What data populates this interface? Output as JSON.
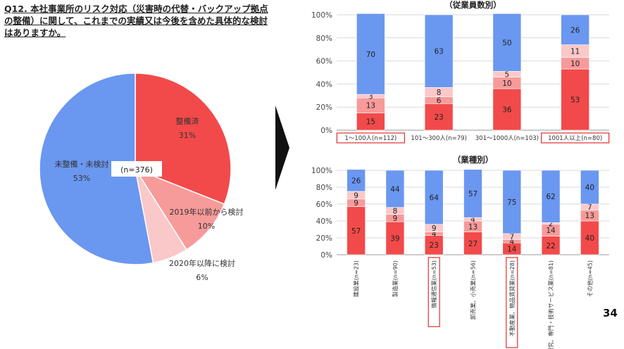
{
  "question": "Q12. 本社事業所のリスク対応（災害時の代替・バックアップ拠点の整備）に関して、これまでの実績又は今後を含めた具体的な検討はありますか。",
  "page_number": "34",
  "chart_data": [
    {
      "type": "pie",
      "n_label": "(n=376)",
      "slices": [
        {
          "label": "整備済",
          "value": 31,
          "value_label": "31%",
          "color": "#f24a4a"
        },
        {
          "label": "2019年以前から検討",
          "value": 10,
          "value_label": "10%",
          "color": "#f79a9a"
        },
        {
          "label": "2020年以降に検討",
          "value": 6,
          "value_label": "6%",
          "color": "#fac8c8"
        },
        {
          "label": "未整備・未検討",
          "value": 53,
          "value_label": "53%",
          "color": "#6a97f0"
        }
      ]
    },
    {
      "type": "bar",
      "stacked": true,
      "title": "（従業員数別）",
      "ylim": [
        0,
        100
      ],
      "yticks": [
        "0%",
        "20%",
        "40%",
        "60%",
        "80%",
        "100%"
      ],
      "categories": [
        "1～100人(n=112)",
        "101～300人(n=79)",
        "301～1000人(n=103)",
        "1001人以上(n=80)"
      ],
      "highlighted": [
        0,
        3
      ],
      "series": [
        {
          "values": [
            15,
            23,
            36,
            53
          ],
          "color": "#f24a4a"
        },
        {
          "values": [
            13,
            6,
            10,
            10
          ],
          "color": "#f79a9a"
        },
        {
          "values": [
            3,
            8,
            5,
            11
          ],
          "color": "#fac8c8"
        },
        {
          "values": [
            70,
            63,
            50,
            26
          ],
          "color": "#6a97f0"
        }
      ]
    },
    {
      "type": "bar",
      "stacked": true,
      "title": "（業種別）",
      "ylim": [
        0,
        100
      ],
      "yticks": [
        "0%",
        "20%",
        "40%",
        "60%",
        "80%",
        "100%"
      ],
      "categories": [
        "建設業(n=23)",
        "製造業(n=90)",
        "情報通信業(n=53)",
        "卸売業、小売業(n=56)",
        "不動産業、物品賃貸業(n=28)",
        "学術研究、専門・技術サービス業(n=81)",
        "その他(n=45)"
      ],
      "highlighted": [
        2,
        4
      ],
      "series": [
        {
          "values": [
            57,
            39,
            23,
            27,
            14,
            22,
            40
          ],
          "color": "#f24a4a"
        },
        {
          "values": [
            9,
            9,
            4,
            13,
            4,
            14,
            13
          ],
          "color": "#f79a9a"
        },
        {
          "values": [
            9,
            8,
            9,
            4,
            7,
            2,
            7
          ],
          "color": "#fac8c8"
        },
        {
          "values": [
            26,
            44,
            64,
            57,
            75,
            62,
            40
          ],
          "color": "#6a97f0"
        }
      ]
    }
  ]
}
